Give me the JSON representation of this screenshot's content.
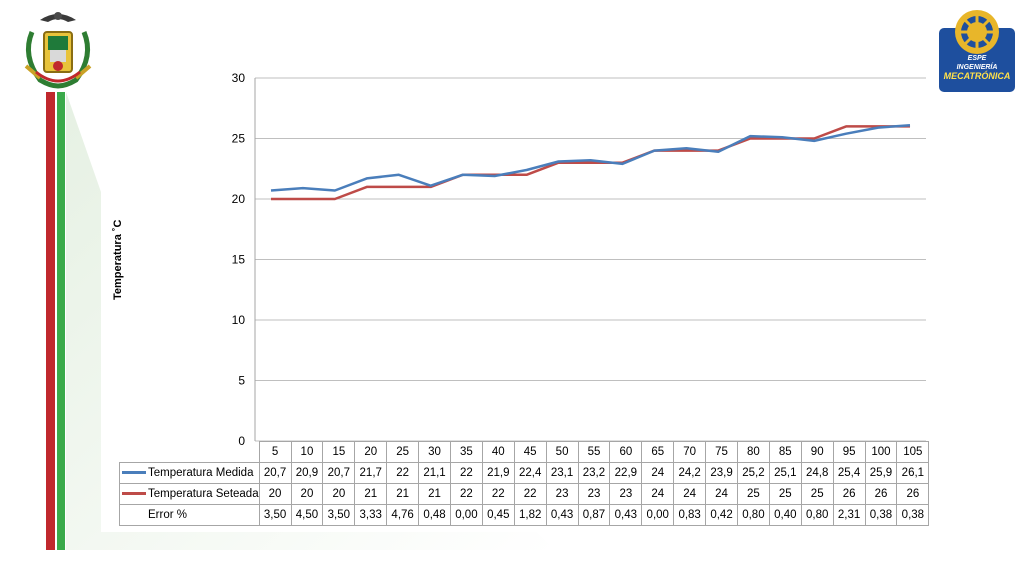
{
  "colors": {
    "measured": "#4a7ebb",
    "setpoint": "#be4b48",
    "grid": "#bfbfbf",
    "stripe_red": "#c0282d",
    "stripe_green": "#3aaa4a",
    "logo_blue": "#1e4f9e"
  },
  "logo": {
    "line1": "ESPE",
    "line2": "INGENIERÍA",
    "line3": "MECATRÓNICA"
  },
  "chart_data": {
    "type": "line",
    "ylabel": "Temperatura ˚C",
    "ylim": [
      0,
      30
    ],
    "yticks": [
      "0",
      "5",
      "10",
      "15",
      "20",
      "25",
      "30"
    ],
    "grid": true,
    "legend": "data-table",
    "categories": [
      "5",
      "10",
      "15",
      "20",
      "25",
      "30",
      "35",
      "40",
      "45",
      "50",
      "55",
      "60",
      "65",
      "70",
      "75",
      "80",
      "85",
      "90",
      "95",
      "100",
      "105"
    ],
    "series": [
      {
        "name": "Temperatura Medida",
        "values": [
          20.7,
          20.9,
          20.7,
          21.7,
          22,
          21.1,
          22,
          21.9,
          22.4,
          23.1,
          23.2,
          22.9,
          24,
          24.2,
          23.9,
          25.2,
          25.1,
          24.8,
          25.4,
          25.9,
          26.1
        ],
        "labels": [
          "20,7",
          "20,9",
          "20,7",
          "21,7",
          "22",
          "21,1",
          "22",
          "21,9",
          "22,4",
          "23,1",
          "23,2",
          "22,9",
          "24",
          "24,2",
          "23,9",
          "25,2",
          "25,1",
          "24,8",
          "25,4",
          "25,9",
          "26,1"
        ]
      },
      {
        "name": "Temperatura Seteada",
        "values": [
          20,
          20,
          20,
          21,
          21,
          21,
          22,
          22,
          22,
          23,
          23,
          23,
          24,
          24,
          24,
          25,
          25,
          25,
          26,
          26,
          26
        ],
        "labels": [
          "20",
          "20",
          "20",
          "21",
          "21",
          "21",
          "22",
          "22",
          "22",
          "23",
          "23",
          "23",
          "24",
          "24",
          "24",
          "25",
          "25",
          "25",
          "26",
          "26",
          "26"
        ]
      }
    ],
    "error_row": {
      "name": "Error %",
      "labels": [
        "3,50",
        "4,50",
        "3,50",
        "3,33",
        "4,76",
        "0,48",
        "0,00",
        "0,45",
        "1,82",
        "0,43",
        "0,87",
        "0,43",
        "0,00",
        "0,83",
        "0,42",
        "0,80",
        "0,40",
        "0,80",
        "2,31",
        "0,38",
        "0,38"
      ]
    }
  }
}
